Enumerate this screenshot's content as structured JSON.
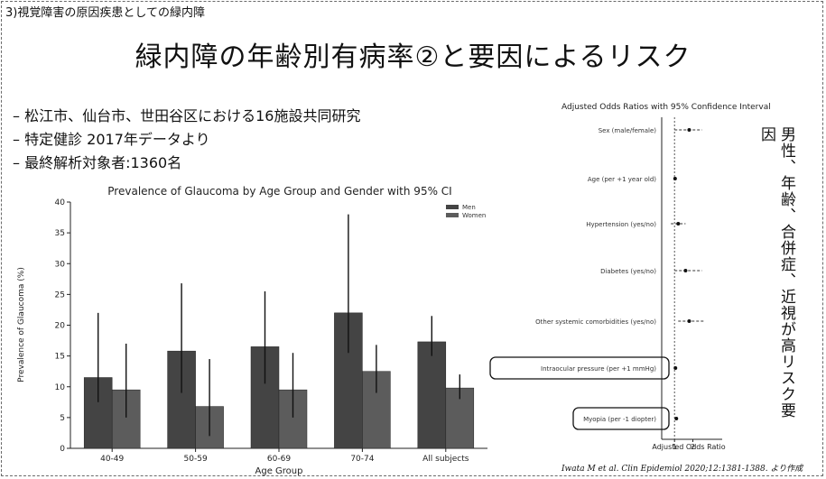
{
  "section_label": "3)視覚障害の原因疾患としての緑内障",
  "title": "緑内障の年齢別有病率②と要因によるリスク",
  "bullets": [
    "松江市、仙台市、世田谷区における16施設共同研究",
    "特定健診 2017年データより",
    "最終解析対象者:1360名"
  ],
  "vertical_text": "男性、年齢、合併症、近視が高リスク要因",
  "citation": "Iwata M et al. Clin Epidemiol 2020;12:1381-1388. より作成",
  "chart_data": [
    {
      "type": "bar",
      "title": "Prevalence of Glaucoma by Age Group and Gender with 95% CI",
      "xlabel": "Age Group",
      "ylabel": "Prevalence of Glaucoma (%)",
      "ylim": [
        0,
        40
      ],
      "yticks": [
        0,
        5,
        10,
        15,
        20,
        25,
        30,
        35,
        40
      ],
      "categories": [
        "40-49",
        "50-59",
        "60-69",
        "70-74",
        "All subjects"
      ],
      "series": [
        {
          "name": "Men",
          "color": "#444444",
          "values": [
            11.5,
            15.8,
            16.5,
            22.0,
            17.3
          ],
          "ci": [
            [
              7.5,
              22.0
            ],
            [
              9.0,
              26.8
            ],
            [
              10.5,
              25.5
            ],
            [
              15.5,
              38.0
            ],
            [
              15.0,
              21.5
            ]
          ]
        },
        {
          "name": "Women",
          "color": "#5c5c5c",
          "values": [
            9.5,
            6.8,
            9.5,
            12.5,
            9.8
          ],
          "ci": [
            [
              5.0,
              17.0
            ],
            [
              2.0,
              14.5
            ],
            [
              5.0,
              15.5
            ],
            [
              9.0,
              16.8
            ],
            [
              8.0,
              12.0
            ]
          ]
        }
      ],
      "legend_position": "top-right"
    },
    {
      "type": "scatter",
      "title": "Adjusted Odds Ratios with 95% Confidence Interval",
      "xlabel": "Adjusted Odds Ratio",
      "xlim": [
        0.3,
        3.6
      ],
      "xticks": [
        1,
        2
      ],
      "reference_line": 1,
      "variables": [
        {
          "label": "Sex (male/female)",
          "or": 1.8,
          "ci": [
            1.0,
            2.5
          ],
          "highlighted": false
        },
        {
          "label": "Age (per +1 year old)",
          "or": 1.03,
          "ci": [
            1.0,
            1.06
          ],
          "highlighted": false
        },
        {
          "label": "Hypertension (yes/no)",
          "or": 1.2,
          "ci": [
            0.8,
            1.6
          ],
          "highlighted": false
        },
        {
          "label": "Diabetes (yes/no)",
          "or": 1.6,
          "ci": [
            1.0,
            2.5
          ],
          "highlighted": false
        },
        {
          "label": "Other systemic comorbidities (yes/no)",
          "or": 1.8,
          "ci": [
            1.2,
            2.6
          ],
          "highlighted": false
        },
        {
          "label": "Intraocular pressure (per +1 mmHg)",
          "or": 1.05,
          "ci": [
            1.0,
            1.1
          ],
          "highlighted": true
        },
        {
          "label": "Myopia (per -1 diopter)",
          "or": 1.1,
          "ci": [
            1.05,
            1.15
          ],
          "highlighted": true
        }
      ]
    }
  ]
}
